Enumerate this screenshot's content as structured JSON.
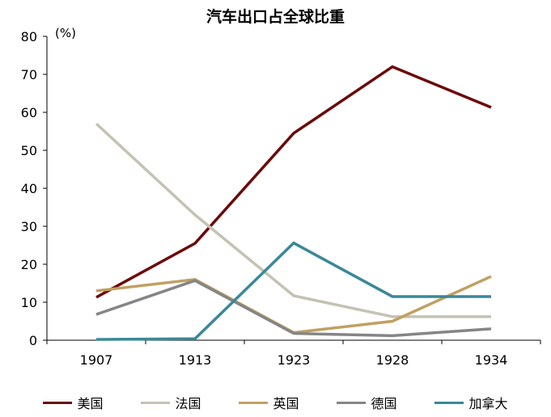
{
  "chart_data": {
    "type": "line",
    "title": "汽车出口占全球比重",
    "ylabel": "(%)",
    "xlabel": "",
    "ylim": [
      0,
      80
    ],
    "yticks": [
      "0",
      "10",
      "20",
      "30",
      "40",
      "50",
      "60",
      "70",
      "80"
    ],
    "categories": [
      "1907",
      "1913",
      "1923",
      "1928",
      "1934"
    ],
    "series": [
      {
        "name": "美国",
        "color": "#6b0a0a",
        "values": [
          11.3,
          25.5,
          54.5,
          72,
          61.3
        ]
      },
      {
        "name": "法国",
        "color": "#c4c3b3",
        "values": [
          57,
          33,
          11.7,
          6.2,
          6.2
        ]
      },
      {
        "name": "英国",
        "color": "#c0a062",
        "values": [
          13,
          16,
          2,
          5,
          16.8
        ]
      },
      {
        "name": "德国",
        "color": "#858585",
        "values": [
          6.8,
          15.7,
          1.8,
          1.2,
          3
        ]
      },
      {
        "name": "加拿大",
        "color": "#3a8898",
        "values": [
          0.2,
          0.4,
          25.6,
          11.5,
          11.5
        ]
      }
    ],
    "grid": false,
    "legend": "bottom"
  }
}
